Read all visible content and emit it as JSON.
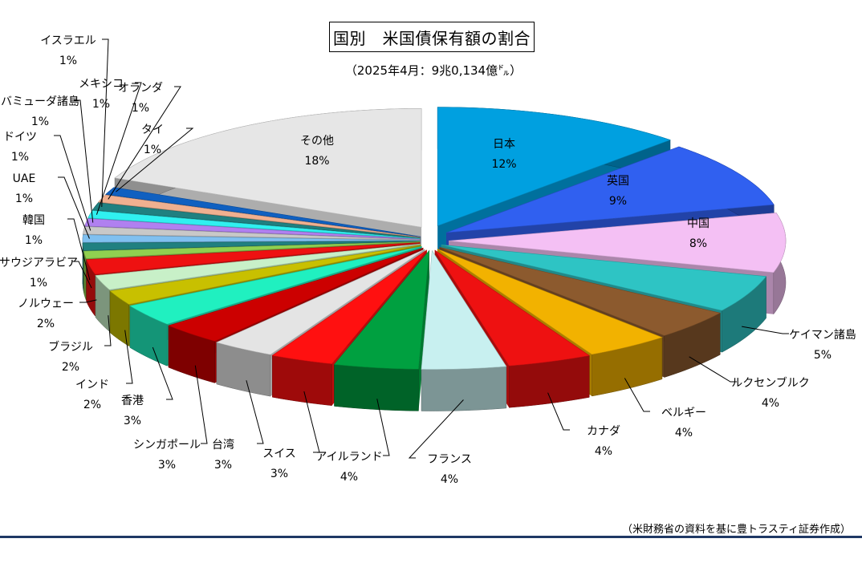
{
  "title": "国別　米国債保有額の割合",
  "subtitle": "（2025年4月：9兆0,134億㌦）",
  "source": "（米財務省の資料を基に豊トラスティ証券作成）",
  "chart_data": {
    "type": "pie",
    "style": "3d-exploded",
    "unit": "%",
    "slices": [
      {
        "label": "日本",
        "value": 12,
        "value_label": "12%",
        "color": "#00a0e0"
      },
      {
        "label": "英国",
        "value": 9,
        "value_label": "9%",
        "color": "#3060f0"
      },
      {
        "label": "中国",
        "value": 8,
        "value_label": "8%",
        "color": "#f4c0f4"
      },
      {
        "label": "ケイマン諸島",
        "value": 5,
        "value_label": "5%",
        "color": "#2ec4c4"
      },
      {
        "label": "ルクセンブルク",
        "value": 4,
        "value_label": "4%",
        "color": "#8c5a2e"
      },
      {
        "label": "ベルギー",
        "value": 4,
        "value_label": "4%",
        "color": "#f2b200"
      },
      {
        "label": "カナダ",
        "value": 4,
        "value_label": "4%",
        "color": "#ee1111"
      },
      {
        "label": "フランス",
        "value": 4,
        "value_label": "4%",
        "color": "#c8f0f0"
      },
      {
        "label": "アイルランド",
        "value": 4,
        "value_label": "4%",
        "color": "#00a040"
      },
      {
        "label": "スイス",
        "value": 3,
        "value_label": "3%",
        "color": "#ff1010"
      },
      {
        "label": "台湾",
        "value": 3,
        "value_label": "3%",
        "color": "#e4e4e4"
      },
      {
        "label": "シンガポール",
        "value": 3,
        "value_label": "3%",
        "color": "#cc0000"
      },
      {
        "label": "香港",
        "value": 3,
        "value_label": "3%",
        "color": "#20f0c0"
      },
      {
        "label": "インド",
        "value": 2,
        "value_label": "2%",
        "color": "#c8c000"
      },
      {
        "label": "ブラジル",
        "value": 2,
        "value_label": "2%",
        "color": "#c8f0c8"
      },
      {
        "label": "ノルウェー",
        "value": 2,
        "value_label": "2%",
        "color": "#ee1111"
      },
      {
        "label": "サウジアラビア",
        "value": 1,
        "value_label": "1%",
        "color": "#90d050"
      },
      {
        "label": "韓国",
        "value": 1,
        "value_label": "1%",
        "color": "#208080"
      },
      {
        "label": "UAE",
        "value": 1,
        "value_label": "1%",
        "color": "#80c0f0"
      },
      {
        "label": "ドイツ",
        "value": 1,
        "value_label": "1%",
        "color": "#c8c8c8"
      },
      {
        "label": "バミューダ諸島",
        "value": 1,
        "value_label": "1%",
        "color": "#b080f0"
      },
      {
        "label": "メキシコ",
        "value": 1,
        "value_label": "1%",
        "color": "#30f0f0"
      },
      {
        "label": "イスラエル",
        "value": 1,
        "value_label": "1%",
        "color": "#208080"
      },
      {
        "label": "オランダ",
        "value": 1,
        "value_label": "1%",
        "color": "#f0b090"
      },
      {
        "label": "タイ",
        "value": 1,
        "value_label": "1%",
        "color": "#1060c0"
      },
      {
        "label": "その他",
        "value": 18,
        "value_label": "18%",
        "color": "#e6e6e6"
      }
    ]
  }
}
